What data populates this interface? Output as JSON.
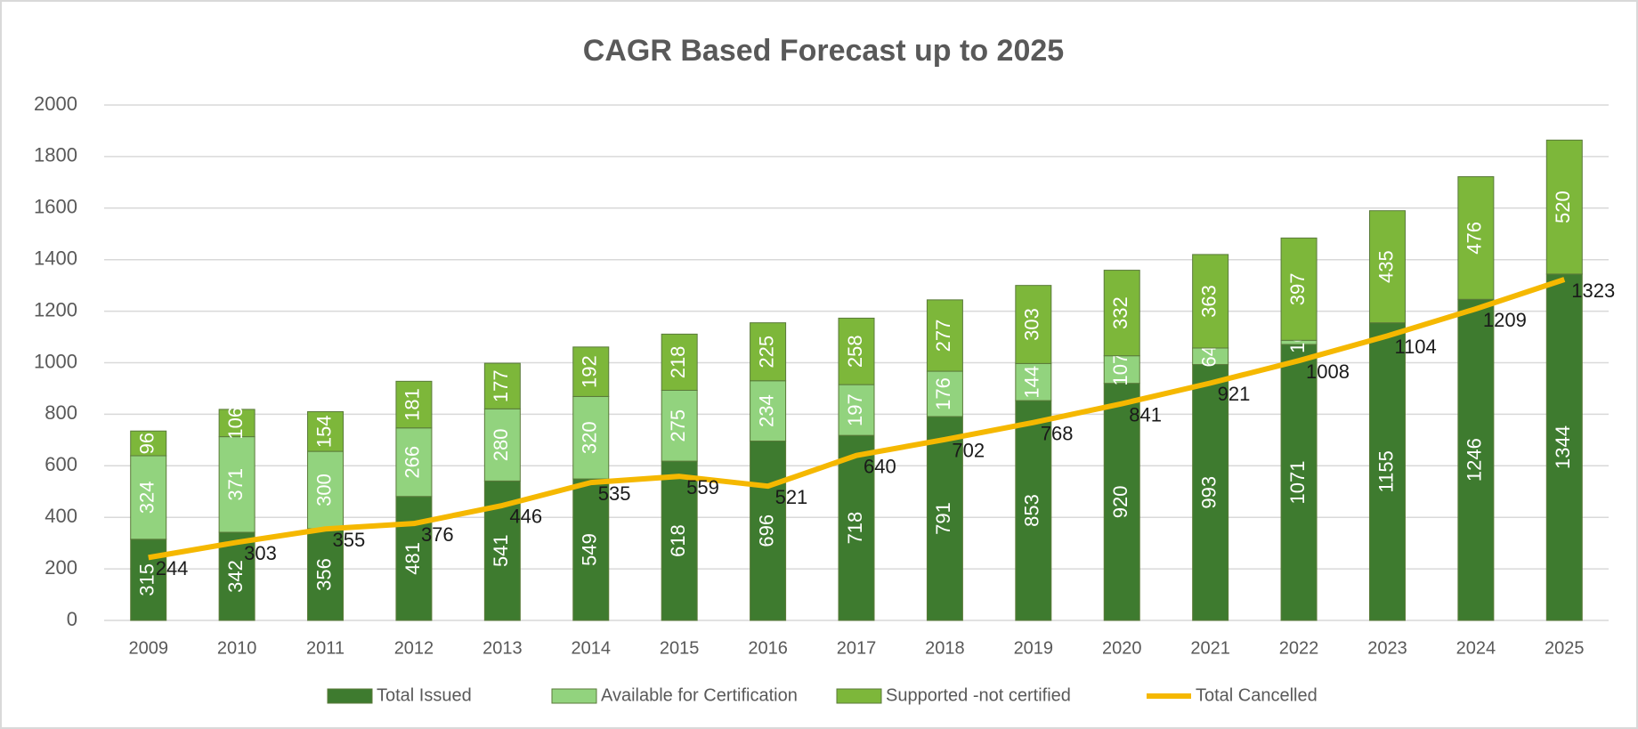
{
  "chart_data": {
    "type": "bar",
    "stacked": true,
    "title": "CAGR Based Forecast up to 2025",
    "categories": [
      "2009",
      "2010",
      "2011",
      "2012",
      "2013",
      "2014",
      "2015",
      "2016",
      "2017",
      "2018",
      "2019",
      "2020",
      "2021",
      "2022",
      "2023",
      "2024",
      "2025"
    ],
    "series": [
      {
        "name": "Total Issued",
        "type": "bar",
        "color": "#3e7b2f",
        "values": [
          315,
          342,
          356,
          481,
          541,
          549,
          618,
          696,
          718,
          791,
          853,
          920,
          993,
          1071,
          1155,
          1246,
          1344
        ]
      },
      {
        "name": "Available for Certification",
        "type": "bar",
        "color": "#92d37e",
        "values": [
          324,
          371,
          300,
          266,
          280,
          320,
          275,
          234,
          197,
          176,
          144,
          107,
          64,
          16,
          null,
          null,
          null
        ]
      },
      {
        "name": "Supported -not certified",
        "type": "bar",
        "color": "#7db73a",
        "values": [
          96,
          106,
          154,
          181,
          177,
          192,
          218,
          225,
          258,
          277,
          303,
          332,
          363,
          397,
          435,
          476,
          520
        ]
      },
      {
        "name": "Total Cancelled",
        "type": "line",
        "color": "#f5b800",
        "values": [
          244,
          303,
          355,
          376,
          446,
          535,
          559,
          521,
          640,
          702,
          768,
          841,
          921,
          1008,
          1104,
          1209,
          1323
        ]
      }
    ],
    "ylim": [
      0,
      2000
    ],
    "yticks": [
      0,
      200,
      400,
      600,
      800,
      1000,
      1200,
      1400,
      1600,
      1800,
      2000
    ],
    "grid": true,
    "legend": "bottom"
  }
}
